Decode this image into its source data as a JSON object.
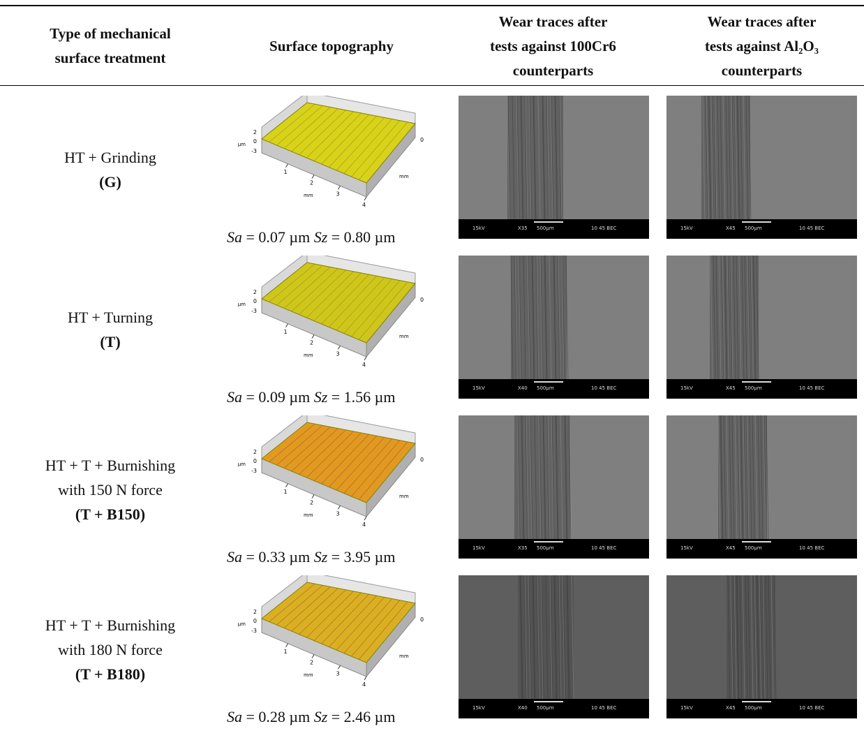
{
  "header": [
    "Type of mechanical surface treatment",
    "Surface topography",
    "Wear traces after tests against 100Cr6 counterparts",
    "Wear traces after tests against Al₂O₃ counterparts"
  ],
  "header_lines": [
    [
      "Type of mechanical",
      "surface treatment"
    ],
    [
      "Surface topography"
    ],
    [
      "Wear traces after",
      "tests against 100Cr6",
      "counterparts"
    ],
    [
      "Wear traces after",
      "tests against Al₂O₃",
      "counterparts"
    ]
  ],
  "topography_axes": {
    "z_ticks": [
      "2",
      "0",
      "-3"
    ],
    "z_unit": "µm",
    "x_ticks": [
      "1",
      "2",
      "3",
      "4"
    ],
    "x_unit": "mm",
    "y_tick": "0",
    "y_unit": "mm"
  },
  "rows": [
    {
      "treatment": [
        "HT + Grinding"
      ],
      "code": "(G)",
      "surface_color": "#d8d21a",
      "roughness": [
        {
          "symbol": "Sa",
          "value": "= 0.07 µm"
        },
        {
          "symbol": "Sz",
          "value": "= 0.80 µm"
        }
      ],
      "sem": [
        {
          "voltage": "15kV",
          "magnification": "X35",
          "scale": "500µm",
          "label": "10 45 BEC"
        },
        {
          "voltage": "15kV",
          "magnification": "X45",
          "scale": "500µm",
          "label": "10 45 BEC"
        }
      ]
    },
    {
      "treatment": [
        "HT + Turning"
      ],
      "code": "(T)",
      "surface_color": "#cfc61c",
      "roughness": [
        {
          "symbol": "Sa",
          "value": "= 0.09 µm"
        },
        {
          "symbol": "Sz",
          "value": "= 1.56 µm"
        }
      ],
      "sem": [
        {
          "voltage": "15kV",
          "magnification": "X40",
          "scale": "500µm",
          "label": "10 45 BEC"
        },
        {
          "voltage": "15kV",
          "magnification": "X45",
          "scale": "500µm",
          "label": "10 45 BEC"
        }
      ]
    },
    {
      "treatment": [
        "HT + T + Burnishing",
        "with 150 N force"
      ],
      "code": "(T + B150)",
      "surface_color": "#e09a22",
      "roughness": [
        {
          "symbol": "Sa",
          "value": "= 0.33 µm"
        },
        {
          "symbol": "Sz",
          "value": "= 3.95 µm"
        }
      ],
      "sem": [
        {
          "voltage": "15kV",
          "magnification": "X35",
          "scale": "500µm",
          "label": "10 45 BEC"
        },
        {
          "voltage": "15kV",
          "magnification": "X45",
          "scale": "500µm",
          "label": "10 45 BEC"
        }
      ]
    },
    {
      "treatment": [
        "HT + T + Burnishing",
        "with 180 N force"
      ],
      "code": "(T + B180)",
      "surface_color": "#d9b024",
      "roughness": [
        {
          "symbol": "Sa",
          "value": "= 0.28 µm"
        },
        {
          "symbol": "Sz",
          "value": "= 2.46 µm"
        }
      ],
      "sem": [
        {
          "voltage": "15kV",
          "magnification": "X40",
          "scale": "500µm",
          "label": "10 45 BEC"
        },
        {
          "voltage": "15kV",
          "magnification": "X45",
          "scale": "500µm",
          "label": "10 45 BEC"
        }
      ]
    }
  ]
}
